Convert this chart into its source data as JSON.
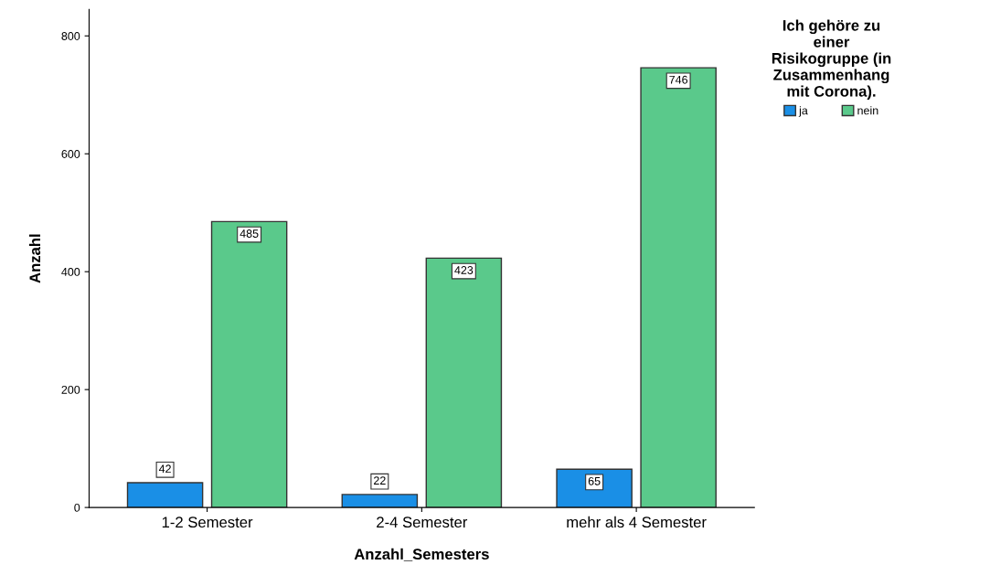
{
  "chart_data": {
    "type": "bar",
    "xlabel": "Anzahl_Semesters",
    "ylabel": "Anzahl",
    "legend_title": "Ich gehöre zu\neiner\nRisikogruppe (in\nZusammenhang\nmit Corona).",
    "categories": [
      "1-2 Semester",
      "2-4 Semester",
      "mehr als 4 Semester"
    ],
    "series": [
      {
        "name": "ja",
        "color": "#1a8fe6",
        "values": [
          42,
          22,
          65
        ]
      },
      {
        "name": "nein",
        "color": "#5ac98b",
        "values": [
          485,
          423,
          746
        ]
      }
    ],
    "ylim": [
      0,
      845
    ],
    "yticks": [
      0,
      200,
      400,
      600,
      800
    ],
    "data_labels": true,
    "grid": false,
    "legend": "top right"
  }
}
